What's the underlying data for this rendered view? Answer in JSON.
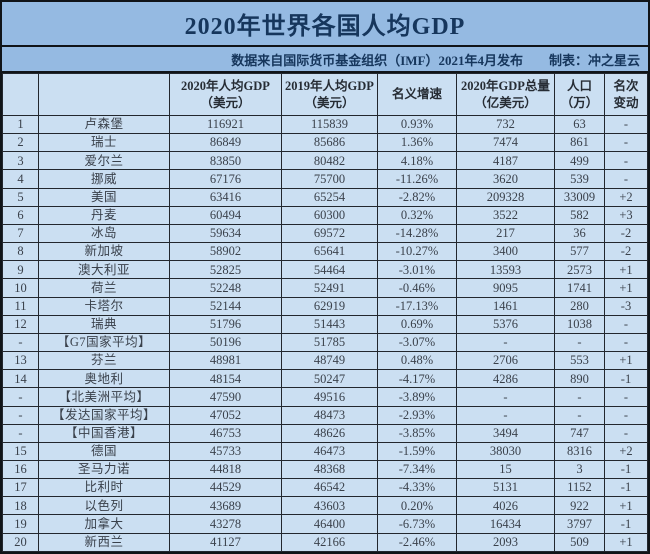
{
  "title": "2020年世界各国人均GDP",
  "subtitle": {
    "source": "数据来自国际货币基金组织（IMF）2021年4月发布",
    "credit": "制表：冲之星云"
  },
  "table": {
    "headers": [
      "",
      "",
      "2020年人均GDP\n（美元）",
      "2019年人均GDP\n（美元）",
      "名义增速",
      "2020年GDP总量\n（亿美元）",
      "人口\n（万）",
      "名次\n变动"
    ]
  },
  "chart_data": {
    "type": "table",
    "title": "2020年世界各国人均GDP",
    "columns": [
      "",
      "",
      "2020年人均GDP（美元）",
      "2019年人均GDP（美元）",
      "名义增速",
      "2020年GDP总量（亿美元）",
      "人口（万）",
      "名次变动"
    ],
    "rows": [
      [
        "1",
        "卢森堡",
        "116921",
        "115839",
        "0.93%",
        "732",
        "63",
        "-"
      ],
      [
        "2",
        "瑞士",
        "86849",
        "85686",
        "1.36%",
        "7474",
        "861",
        "-"
      ],
      [
        "3",
        "爱尔兰",
        "83850",
        "80482",
        "4.18%",
        "4187",
        "499",
        "-"
      ],
      [
        "4",
        "挪威",
        "67176",
        "75700",
        "-11.26%",
        "3620",
        "539",
        "-"
      ],
      [
        "5",
        "美国",
        "63416",
        "65254",
        "-2.82%",
        "209328",
        "33009",
        "+2"
      ],
      [
        "6",
        "丹麦",
        "60494",
        "60300",
        "0.32%",
        "3522",
        "582",
        "+3"
      ],
      [
        "7",
        "冰岛",
        "59634",
        "69572",
        "-14.28%",
        "217",
        "36",
        "-2"
      ],
      [
        "8",
        "新加坡",
        "58902",
        "65641",
        "-10.27%",
        "3400",
        "577",
        "-2"
      ],
      [
        "9",
        "澳大利亚",
        "52825",
        "54464",
        "-3.01%",
        "13593",
        "2573",
        "+1"
      ],
      [
        "10",
        "荷兰",
        "52248",
        "52491",
        "-0.46%",
        "9095",
        "1741",
        "+1"
      ],
      [
        "11",
        "卡塔尔",
        "52144",
        "62919",
        "-17.13%",
        "1461",
        "280",
        "-3"
      ],
      [
        "12",
        "瑞典",
        "51796",
        "51443",
        "0.69%",
        "5376",
        "1038",
        "-"
      ],
      [
        "-",
        "【G7国家平均】",
        "50196",
        "51785",
        "-3.07%",
        "-",
        "-",
        "-"
      ],
      [
        "13",
        "芬兰",
        "48981",
        "48749",
        "0.48%",
        "2706",
        "553",
        "+1"
      ],
      [
        "14",
        "奥地利",
        "48154",
        "50247",
        "-4.17%",
        "4286",
        "890",
        "-1"
      ],
      [
        "-",
        "【北美洲平均】",
        "47590",
        "49516",
        "-3.89%",
        "-",
        "-",
        "-"
      ],
      [
        "-",
        "【发达国家平均】",
        "47052",
        "48473",
        "-2.93%",
        "-",
        "-",
        "-"
      ],
      [
        "-",
        "【中国香港】",
        "46753",
        "48626",
        "-3.85%",
        "3494",
        "747",
        "-"
      ],
      [
        "15",
        "德国",
        "45733",
        "46473",
        "-1.59%",
        "38030",
        "8316",
        "+2"
      ],
      [
        "16",
        "圣马力诺",
        "44818",
        "48368",
        "-7.34%",
        "15",
        "3",
        "-1"
      ],
      [
        "17",
        "比利时",
        "44529",
        "46542",
        "-4.33%",
        "5131",
        "1152",
        "-1"
      ],
      [
        "18",
        "以色列",
        "43689",
        "43603",
        "0.20%",
        "4026",
        "922",
        "+1"
      ],
      [
        "19",
        "加拿大",
        "43278",
        "46400",
        "-6.73%",
        "16434",
        "3797",
        "-1"
      ],
      [
        "20",
        "新西兰",
        "41127",
        "42166",
        "-2.46%",
        "2093",
        "509",
        "+1"
      ]
    ]
  },
  "colors": {
    "band_blue": "#95bae2",
    "cell_blue": "#cbdff2",
    "border": "#22272e",
    "title_text": "#16365c",
    "body_text": "#3a414b"
  }
}
